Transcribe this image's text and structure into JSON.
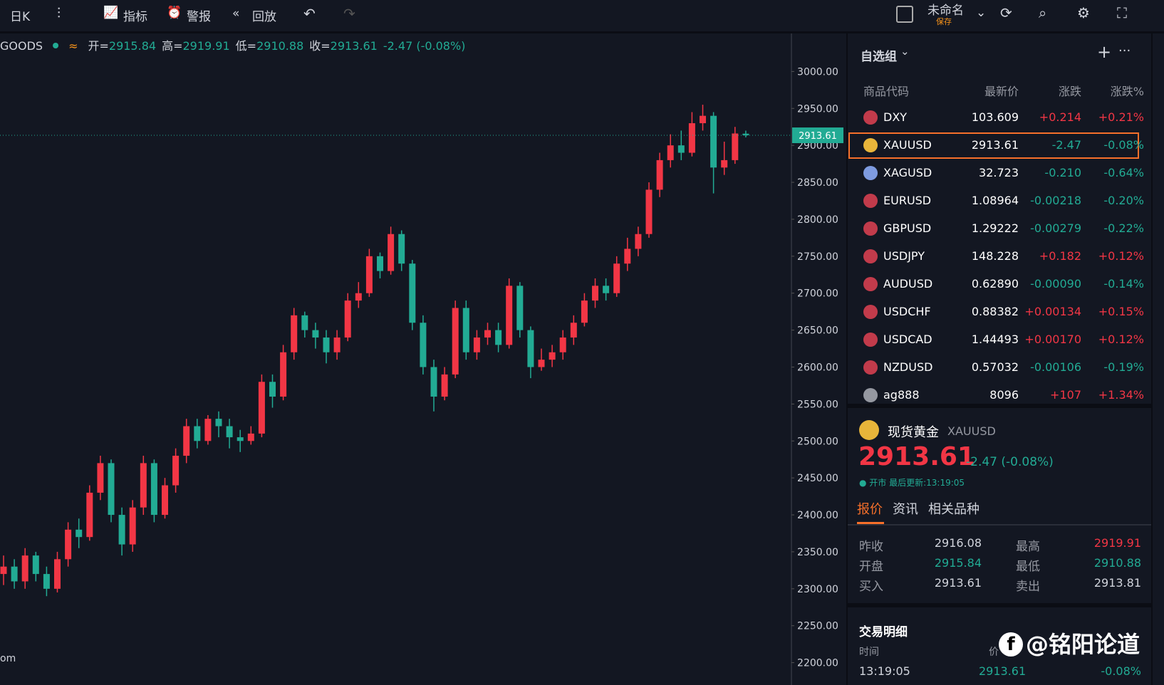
{
  "toolbar": {
    "interval": "日K",
    "indicators": "指标",
    "alerts": "警报",
    "replay": "回放",
    "layout_name": "未命名",
    "save": "保存"
  },
  "chart_header": {
    "symbol": "GOODS",
    "badge": "≈",
    "fields": [
      {
        "label": "开=",
        "value": "2915.84"
      },
      {
        "label": "高=",
        "value": "2919.91"
      },
      {
        "label": "低=",
        "value": "2910.88"
      },
      {
        "label": "收=",
        "value": "2913.61"
      }
    ],
    "change": "-2.47 (-0.08%)"
  },
  "chart_footer": "om",
  "chart_data": {
    "type": "candlestick",
    "up_color": "#f23645",
    "down_color": "#22ab94",
    "open": [
      2320,
      2330,
      2310,
      2345,
      2320,
      2300,
      2340,
      2380,
      2370,
      2430,
      2470,
      2400,
      2360,
      2410,
      2470,
      2400,
      2440,
      2480,
      2520,
      2500,
      2530,
      2520,
      2505,
      2500,
      2510,
      2580,
      2560,
      2620,
      2670,
      2650,
      2640,
      2620,
      2640,
      2690,
      2700,
      2750,
      2730,
      2780,
      2740,
      2660,
      2600,
      2560,
      2590,
      2680,
      2620,
      2640,
      2650,
      2630,
      2710,
      2650,
      2600,
      2610,
      2620,
      2640,
      2660,
      2690,
      2710,
      2700,
      2740,
      2760,
      2780,
      2840,
      2880,
      2900,
      2890,
      2930,
      2940,
      2870,
      2880,
      2915.84
    ],
    "high": [
      2345,
      2340,
      2355,
      2350,
      2330,
      2350,
      2390,
      2395,
      2440,
      2480,
      2475,
      2410,
      2420,
      2480,
      2475,
      2450,
      2490,
      2530,
      2530,
      2535,
      2540,
      2530,
      2515,
      2520,
      2590,
      2590,
      2630,
      2680,
      2675,
      2660,
      2650,
      2650,
      2700,
      2715,
      2760,
      2755,
      2790,
      2785,
      2745,
      2670,
      2610,
      2600,
      2690,
      2690,
      2650,
      2660,
      2660,
      2720,
      2715,
      2655,
      2625,
      2630,
      2650,
      2670,
      2700,
      2720,
      2720,
      2750,
      2775,
      2790,
      2850,
      2890,
      2915,
      2920,
      2945,
      2955,
      2945,
      2905,
      2925,
      2919.91
    ],
    "low": [
      2305,
      2300,
      2300,
      2310,
      2290,
      2295,
      2330,
      2355,
      2365,
      2420,
      2390,
      2345,
      2350,
      2400,
      2390,
      2395,
      2430,
      2470,
      2490,
      2495,
      2505,
      2490,
      2485,
      2495,
      2505,
      2545,
      2555,
      2610,
      2640,
      2625,
      2605,
      2610,
      2635,
      2680,
      2695,
      2720,
      2725,
      2730,
      2650,
      2590,
      2540,
      2555,
      2585,
      2610,
      2610,
      2630,
      2620,
      2625,
      2640,
      2585,
      2595,
      2600,
      2610,
      2630,
      2655,
      2680,
      2690,
      2695,
      2730,
      2750,
      2775,
      2830,
      2870,
      2880,
      2885,
      2920,
      2835,
      2860,
      2875,
      2910.88
    ],
    "close": [
      2330,
      2310,
      2345,
      2320,
      2300,
      2340,
      2380,
      2370,
      2430,
      2470,
      2400,
      2360,
      2410,
      2470,
      2400,
      2440,
      2480,
      2520,
      2500,
      2530,
      2520,
      2505,
      2500,
      2510,
      2580,
      2560,
      2620,
      2670,
      2650,
      2640,
      2620,
      2640,
      2690,
      2700,
      2750,
      2730,
      2780,
      2740,
      2660,
      2600,
      2560,
      2590,
      2680,
      2620,
      2640,
      2650,
      2630,
      2710,
      2650,
      2600,
      2610,
      2620,
      2640,
      2660,
      2690,
      2710,
      2700,
      2740,
      2760,
      2780,
      2840,
      2880,
      2900,
      2890,
      2930,
      2940,
      2870,
      2880,
      2916.08,
      2913.61
    ],
    "ylim": [
      2190,
      3010
    ],
    "yticks": [
      {
        "value": 2200,
        "label": "2200.00"
      },
      {
        "value": 2250,
        "label": "2250.00"
      },
      {
        "value": 2300,
        "label": "2300.00"
      },
      {
        "value": 2350,
        "label": "2350.00"
      },
      {
        "value": 2400,
        "label": "2400.00"
      },
      {
        "value": 2450,
        "label": "2450.00"
      },
      {
        "value": 2500,
        "label": "2500.00"
      },
      {
        "value": 2550,
        "label": "2550.00"
      },
      {
        "value": 2600,
        "label": "2600.00"
      },
      {
        "value": 2650,
        "label": "2650.00"
      },
      {
        "value": 2700,
        "label": "2700.00"
      },
      {
        "value": 2750,
        "label": "2750.00"
      },
      {
        "value": 2800,
        "label": "2800.00"
      },
      {
        "value": 2850,
        "label": "2850.00"
      },
      {
        "value": 2900,
        "label": "2900.00"
      },
      {
        "value": 2950,
        "label": "2950.00"
      },
      {
        "value": 3000,
        "label": "3000.00"
      }
    ],
    "last_price": {
      "value": 2913.61,
      "label": "2913.61"
    }
  },
  "watchlist": {
    "title": "自选组",
    "columns": [
      "商品代码",
      "最新价",
      "涨跌",
      "涨跌%"
    ],
    "rows": [
      [
        "DXY",
        "103.609",
        "+0.214",
        "+0.21%"
      ],
      [
        "XAUUSD",
        "2913.61",
        "-2.47",
        "-0.08%"
      ],
      [
        "XAGUSD",
        "32.723",
        "-0.210",
        "-0.64%"
      ],
      [
        "EURUSD",
        "1.08964",
        "-0.00218",
        "-0.20%"
      ],
      [
        "GBPUSD",
        "1.29222",
        "-0.00279",
        "-0.22%"
      ],
      [
        "USDJPY",
        "148.228",
        "+0.182",
        "+0.12%"
      ],
      [
        "AUDUSD",
        "0.62890",
        "-0.00090",
        "-0.14%"
      ],
      [
        "USDCHF",
        "0.88382",
        "+0.00134",
        "+0.15%"
      ],
      [
        "USDCAD",
        "1.44493",
        "+0.00170",
        "+0.12%"
      ],
      [
        "NZDUSD",
        "0.57032",
        "-0.00106",
        "-0.19%"
      ],
      [
        "ag888",
        "8096",
        "+107",
        "+1.34%"
      ]
    ]
  },
  "detail": {
    "name": "现货黄金",
    "symbol": "XAUUSD",
    "price": "2913.61",
    "change": "-2.47 (-0.08%)",
    "status": "● 开市 最后更新:13:19:05",
    "tabs": [
      "报价",
      "资讯",
      "相关品种"
    ],
    "stats": [
      {
        "label": "昨收",
        "value": "2916.08",
        "color": "#d1d4dc"
      },
      {
        "label": "最高",
        "value": "2919.91",
        "color": "#f23645"
      },
      {
        "label": "开盘",
        "value": "2915.84",
        "color": "#22ab94"
      },
      {
        "label": "最低",
        "value": "2910.88",
        "color": "#22ab94"
      },
      {
        "label": "买入",
        "value": "2913.61",
        "color": "#d1d4dc"
      },
      {
        "label": "卖出",
        "value": "2913.81",
        "color": "#d1d4dc"
      }
    ],
    "trades_title": "交易明细",
    "trade_columns": [
      "时间",
      "价"
    ],
    "trade": [
      "13:19:05",
      "2913.61",
      "-0.08%"
    ]
  },
  "watermark": "@铭阳论道"
}
